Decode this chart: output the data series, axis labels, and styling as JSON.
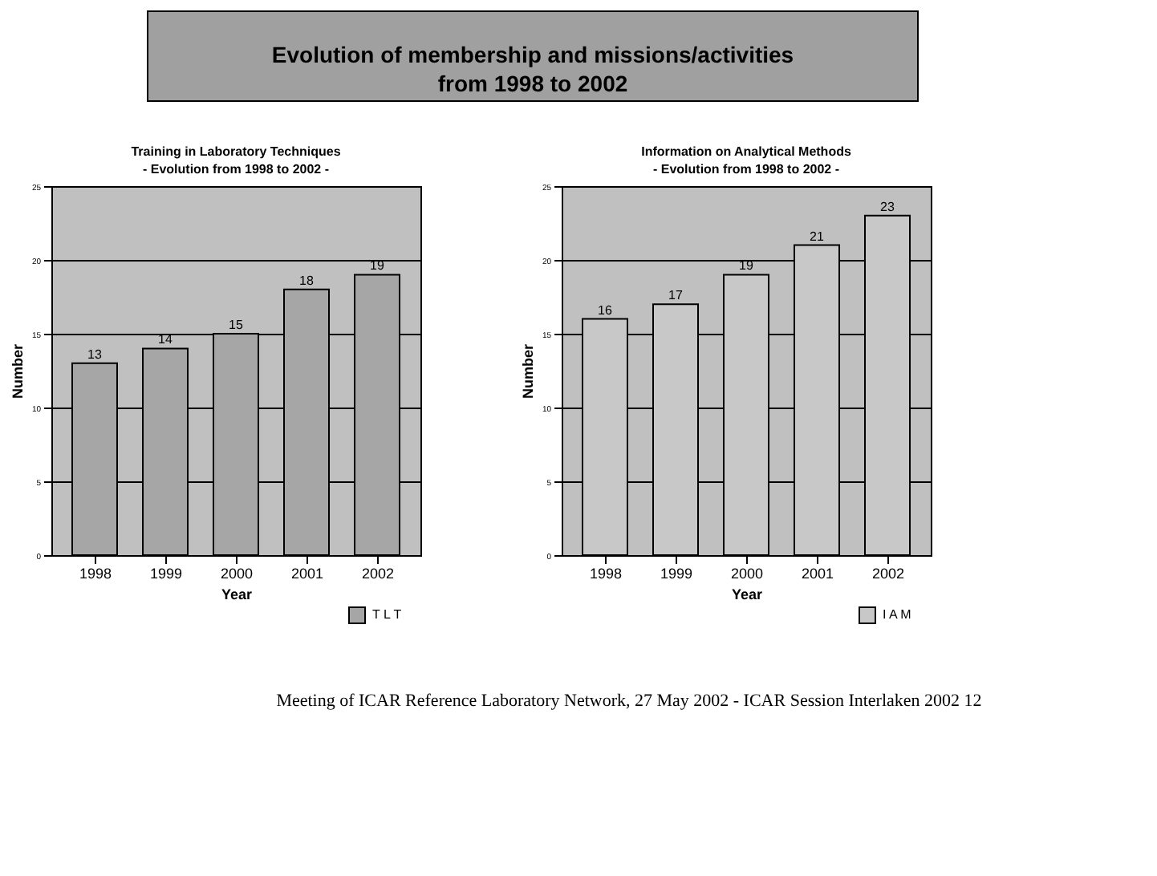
{
  "chart_data": [
    {
      "type": "bar",
      "title": "Training in Laboratory Techniques",
      "subtitle": "- Evolution  from 1998 to 2002 -",
      "xlabel": "Year",
      "ylabel": "Number",
      "categories": [
        "1998",
        "1999",
        "2000",
        "2001",
        "2002"
      ],
      "series": [
        {
          "name": "T L T",
          "color": "#a6a6a6",
          "values": [
            13,
            14,
            15,
            18,
            19
          ]
        }
      ],
      "ylim": [
        0,
        25
      ],
      "yticks": [
        0,
        5,
        10,
        15,
        20,
        25
      ],
      "grid": "y",
      "data_labels": true,
      "legend": "bottom right",
      "annotations": [
        "Evolution of membership and missions/activities from 1998 to 2002",
        "Meeting of ICAR Reference Laboratory Network,  27 May 2002 - ICAR Session Interlaken 2002   12"
      ]
    },
    {
      "type": "bar",
      "title": "Information on Analytical Methods",
      "subtitle": "- Evolution  from 1998 to 2002 -",
      "xlabel": "Year",
      "ylabel": "Number",
      "categories": [
        "1998",
        "1999",
        "2000",
        "2001",
        "2002"
      ],
      "series": [
        {
          "name": "I A M",
          "color": "#c8c8c8",
          "values": [
            16,
            17,
            19,
            21,
            23
          ]
        }
      ],
      "ylim": [
        0,
        25
      ],
      "yticks": [
        0,
        5,
        10,
        15,
        20,
        25
      ],
      "grid": "y",
      "data_labels": true,
      "legend": "bottom right"
    }
  ]
}
